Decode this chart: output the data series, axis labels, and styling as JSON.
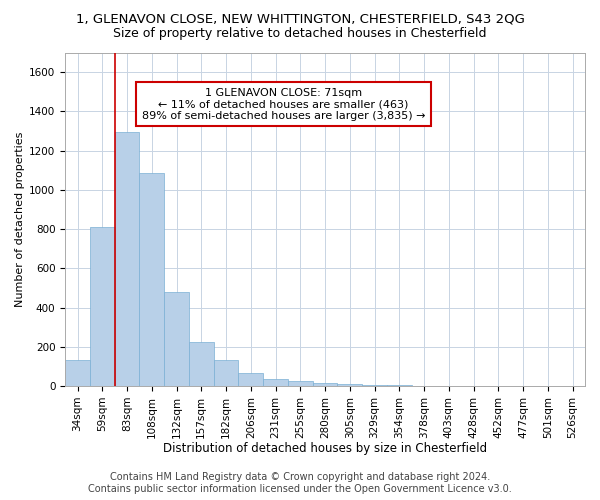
{
  "title1": "1, GLENAVON CLOSE, NEW WHITTINGTON, CHESTERFIELD, S43 2QG",
  "title2": "Size of property relative to detached houses in Chesterfield",
  "xlabel": "Distribution of detached houses by size in Chesterfield",
  "ylabel": "Number of detached properties",
  "footer1": "Contains HM Land Registry data © Crown copyright and database right 2024.",
  "footer2": "Contains public sector information licensed under the Open Government Licence v3.0.",
  "annotation_line1": "1 GLENAVON CLOSE: 71sqm",
  "annotation_line2": "← 11% of detached houses are smaller (463)",
  "annotation_line3": "89% of semi-detached houses are larger (3,835) →",
  "bar_color": "#b8d0e8",
  "bar_edge_color": "#7aafd4",
  "vline_color": "#cc0000",
  "annotation_box_edge": "#cc0000",
  "background_color": "#ffffff",
  "grid_color": "#c8d4e3",
  "categories": [
    "34sqm",
    "59sqm",
    "83sqm",
    "108sqm",
    "132sqm",
    "157sqm",
    "182sqm",
    "206sqm",
    "231sqm",
    "255sqm",
    "280sqm",
    "305sqm",
    "329sqm",
    "354sqm",
    "378sqm",
    "403sqm",
    "428sqm",
    "452sqm",
    "477sqm",
    "501sqm",
    "526sqm"
  ],
  "values": [
    135,
    810,
    1295,
    1085,
    480,
    225,
    130,
    65,
    37,
    23,
    14,
    10,
    7,
    4,
    2,
    2,
    1,
    1,
    1,
    1,
    1
  ],
  "ylim": [
    0,
    1700
  ],
  "yticks": [
    0,
    200,
    400,
    600,
    800,
    1000,
    1200,
    1400,
    1600
  ],
  "vline_x_index": 1.5,
  "title1_fontsize": 9.5,
  "title2_fontsize": 9,
  "xlabel_fontsize": 8.5,
  "ylabel_fontsize": 8,
  "tick_fontsize": 7.5,
  "annotation_fontsize": 8,
  "footer_fontsize": 7
}
